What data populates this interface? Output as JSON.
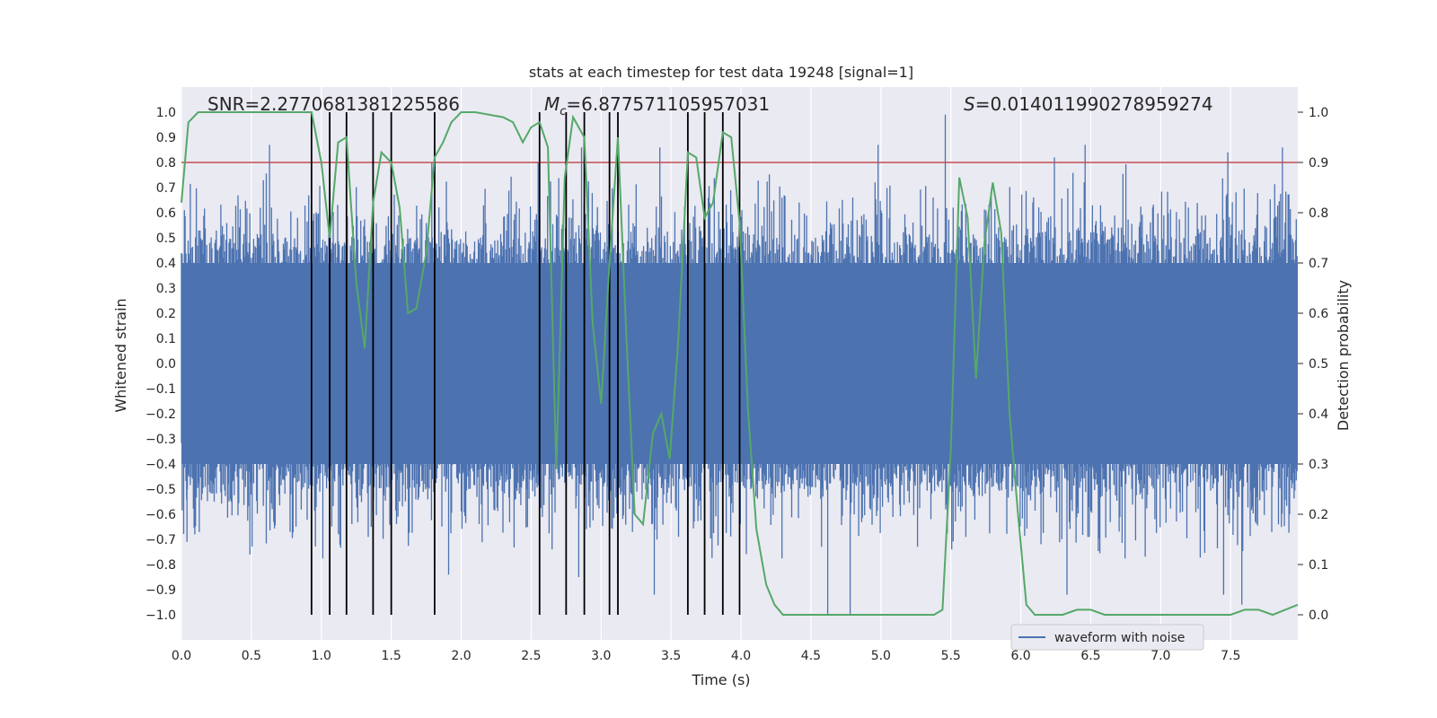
{
  "chart_data": {
    "type": "line",
    "title": "stats at each timestep for test data 19248 [signal=1]",
    "xlabel": "Time (s)",
    "ylabel_left": "Whitened strain",
    "ylabel_right": "Detection probability",
    "xlim": [
      0.0,
      7.98
    ],
    "ylim_left": [
      -1.1,
      1.1
    ],
    "ylim_right": [
      -0.05,
      1.05
    ],
    "x_ticks": [
      "0.0",
      "0.5",
      "1.0",
      "1.5",
      "2.0",
      "2.5",
      "3.0",
      "3.5",
      "4.0",
      "4.5",
      "5.0",
      "5.5",
      "6.0",
      "6.5",
      "7.0",
      "7.5"
    ],
    "x_tick_values": [
      0.0,
      0.5,
      1.0,
      1.5,
      2.0,
      2.5,
      3.0,
      3.5,
      4.0,
      4.5,
      5.0,
      5.5,
      6.0,
      6.5,
      7.0,
      7.5
    ],
    "y_left_ticks": [
      "1.0",
      "0.9",
      "0.8",
      "0.7",
      "0.6",
      "0.5",
      "0.4",
      "0.3",
      "0.2",
      "0.1",
      "0.0",
      "−0.1",
      "−0.2",
      "−0.3",
      "−0.4",
      "−0.5",
      "−0.6",
      "−0.7",
      "−0.8",
      "−0.9",
      "−1.0"
    ],
    "y_left_tick_values": [
      1.0,
      0.9,
      0.8,
      0.7,
      0.6,
      0.5,
      0.4,
      0.3,
      0.2,
      0.1,
      0.0,
      -0.1,
      -0.2,
      -0.3,
      -0.4,
      -0.5,
      -0.6,
      -0.7,
      -0.8,
      -0.9,
      -1.0
    ],
    "y_right_ticks": [
      "1.0",
      "0.9",
      "0.8",
      "0.7",
      "0.6",
      "0.5",
      "0.4",
      "0.3",
      "0.2",
      "0.1",
      "0.0"
    ],
    "y_right_tick_values": [
      1.0,
      0.9,
      0.8,
      0.7,
      0.6,
      0.5,
      0.4,
      0.3,
      0.2,
      0.1,
      0.0
    ],
    "annotations": {
      "snr": "SNR=2.2770681381225586",
      "mc_symbol": "M",
      "mc_sub": "c",
      "mc_value": "=6.877571105957031",
      "s_symbol": "S",
      "s_value": "=0.014011990278959274"
    },
    "legend": {
      "label": "waveform with noise",
      "position": "lower-right"
    },
    "threshold": {
      "value_left": 0.8,
      "color": "#c44e52"
    },
    "vertical_markers": [
      0.93,
      1.06,
      1.18,
      1.37,
      1.5,
      1.81,
      2.56,
      2.75,
      2.88,
      3.06,
      3.12,
      3.62,
      3.74,
      3.87,
      3.99
    ],
    "marker_range_left": [
      -1.0,
      1.0
    ],
    "series": [
      {
        "name": "waveform with noise",
        "color": "#4c72b0",
        "kind": "noise",
        "envelope_typical": 0.42,
        "envelope_peak": 1.0,
        "peaks_up": [
          [
            0.63,
            0.87
          ],
          [
            1.79,
            0.8
          ],
          [
            2.55,
            0.8
          ],
          [
            2.86,
            0.86
          ],
          [
            3.42,
            0.86
          ],
          [
            4.98,
            0.87
          ],
          [
            5.46,
            0.99
          ],
          [
            6.24,
            0.82
          ],
          [
            6.46,
            0.87
          ],
          [
            7.48,
            0.84
          ],
          [
            7.87,
            0.86
          ]
        ],
        "peaks_down": [
          [
            0.04,
            -0.71
          ],
          [
            0.49,
            -0.76
          ],
          [
            1.81,
            -0.79
          ],
          [
            1.91,
            -0.84
          ],
          [
            2.84,
            -0.85
          ],
          [
            3.38,
            -0.92
          ],
          [
            4.62,
            -1.0
          ],
          [
            4.78,
            -1.0
          ],
          [
            6.33,
            -0.92
          ],
          [
            7.45,
            -0.92
          ],
          [
            7.58,
            -0.96
          ]
        ]
      },
      {
        "name": "detection probability",
        "color": "#55a868",
        "axis": "right",
        "x": [
          0.0,
          0.05,
          0.12,
          0.2,
          0.3,
          0.5,
          0.7,
          0.9,
          0.93,
          1.0,
          1.06,
          1.12,
          1.18,
          1.25,
          1.31,
          1.37,
          1.43,
          1.5,
          1.56,
          1.62,
          1.68,
          1.75,
          1.81,
          1.87,
          1.93,
          2.0,
          2.1,
          2.3,
          2.37,
          2.44,
          2.5,
          2.56,
          2.62,
          2.68,
          2.74,
          2.8,
          2.88,
          2.94,
          3.0,
          3.06,
          3.12,
          3.18,
          3.24,
          3.3,
          3.37,
          3.43,
          3.49,
          3.55,
          3.62,
          3.68,
          3.74,
          3.8,
          3.87,
          3.93,
          3.99,
          4.05,
          4.11,
          4.18,
          4.24,
          4.3,
          4.36,
          4.5,
          4.7,
          5.0,
          5.2,
          5.3,
          5.38,
          5.44,
          5.5,
          5.56,
          5.62,
          5.68,
          5.74,
          5.8,
          5.86,
          5.92,
          5.98,
          6.04,
          6.1,
          6.3,
          6.4,
          6.5,
          6.6,
          6.8,
          7.0,
          7.2,
          7.4,
          7.5,
          7.6,
          7.7,
          7.8,
          7.98
        ],
        "values": [
          0.82,
          0.98,
          1.0,
          1.0,
          1.0,
          1.0,
          1.0,
          1.0,
          1.0,
          0.9,
          0.75,
          0.94,
          0.95,
          0.66,
          0.53,
          0.82,
          0.92,
          0.9,
          0.81,
          0.6,
          0.61,
          0.72,
          0.91,
          0.94,
          0.98,
          1.0,
          1.0,
          0.99,
          0.98,
          0.94,
          0.97,
          0.98,
          0.93,
          0.29,
          0.87,
          0.99,
          0.95,
          0.58,
          0.42,
          0.7,
          0.95,
          0.56,
          0.2,
          0.18,
          0.36,
          0.4,
          0.31,
          0.54,
          0.92,
          0.91,
          0.79,
          0.82,
          0.96,
          0.95,
          0.78,
          0.41,
          0.17,
          0.06,
          0.02,
          0.0,
          0.0,
          0.0,
          0.0,
          0.0,
          0.0,
          0.0,
          0.0,
          0.01,
          0.33,
          0.87,
          0.79,
          0.47,
          0.74,
          0.86,
          0.76,
          0.4,
          0.2,
          0.02,
          0.0,
          0.0,
          0.01,
          0.01,
          0.0,
          0.0,
          0.0,
          0.0,
          0.0,
          0.0,
          0.01,
          0.01,
          0.0,
          0.02
        ]
      }
    ]
  }
}
